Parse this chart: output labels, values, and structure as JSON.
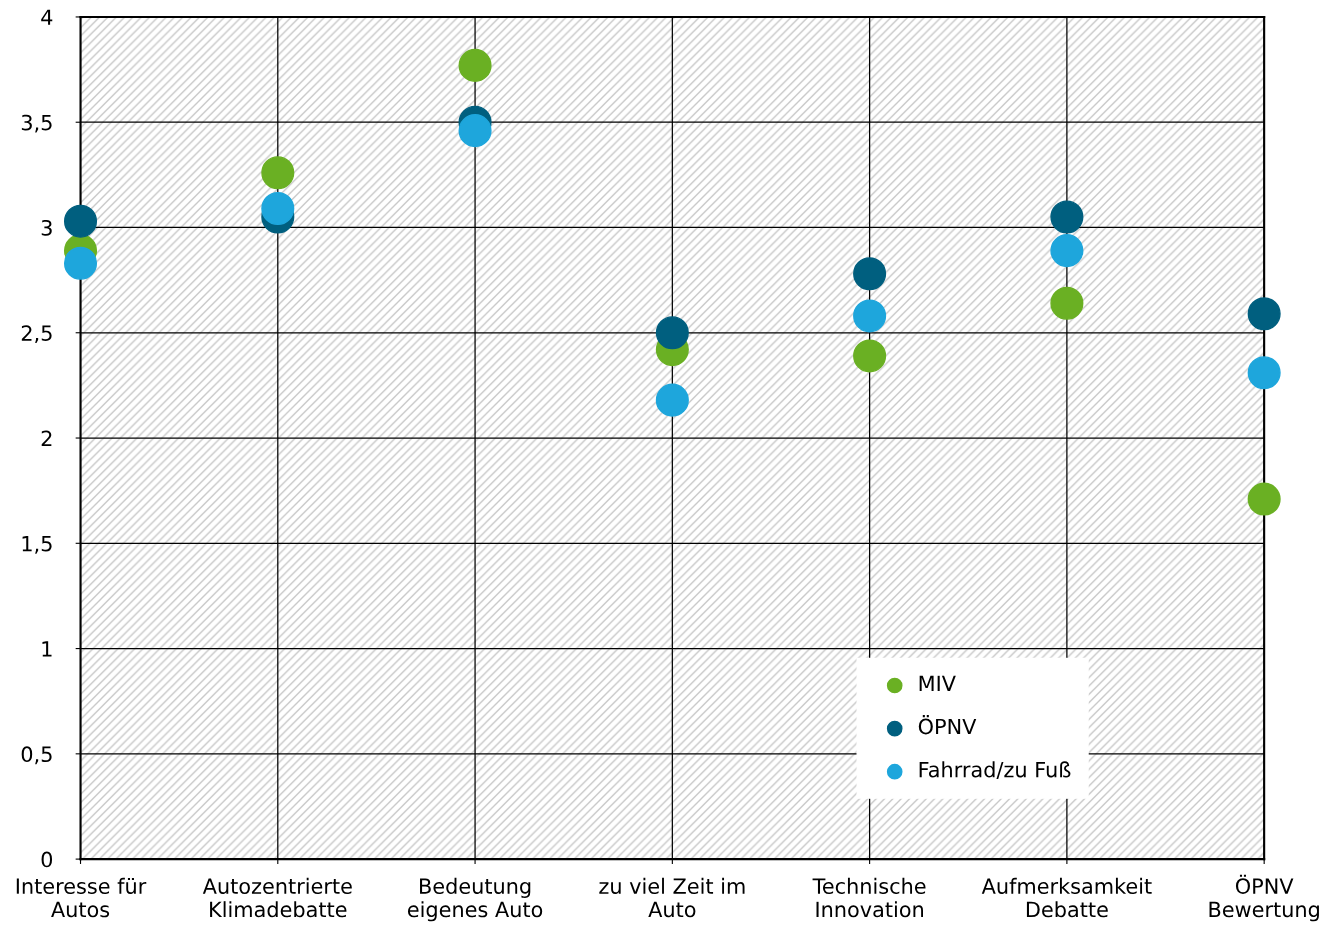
{
  "chart_data": {
    "type": "scatter",
    "categories": [
      "Interesse für\nAutos",
      "Autozentrierte\nKlimadebatte",
      "Bedeutung\neigenes Auto",
      "zu viel Zeit im\nAuto",
      "Technische\nInnovation",
      "Aufmerksamkeit\nDebatte",
      "ÖPNV\nBewertung"
    ],
    "series": [
      {
        "name": "MIV",
        "color": "#6ab023",
        "values": [
          2.89,
          3.26,
          3.77,
          2.42,
          2.39,
          2.64,
          1.71
        ]
      },
      {
        "name": "ÖPNV",
        "color": "#005f7f",
        "values": [
          3.03,
          3.05,
          3.5,
          2.5,
          2.78,
          3.05,
          2.59
        ]
      },
      {
        "name": "Fahrrad/zu Fuß",
        "color": "#1ea6dc",
        "values": [
          2.83,
          3.09,
          3.46,
          2.18,
          2.58,
          2.89,
          2.31
        ]
      }
    ],
    "ylim": [
      0,
      4
    ],
    "yticks": [
      0,
      {
        "value": 0.5,
        "label": "0,5"
      },
      1,
      {
        "value": 1.5,
        "label": "1,5"
      },
      2,
      {
        "value": 2.5,
        "label": "2,5"
      },
      3,
      {
        "value": 3.5,
        "label": "3,5"
      },
      4
    ],
    "grid": true,
    "legend": "bottom right",
    "marker": "circle"
  }
}
